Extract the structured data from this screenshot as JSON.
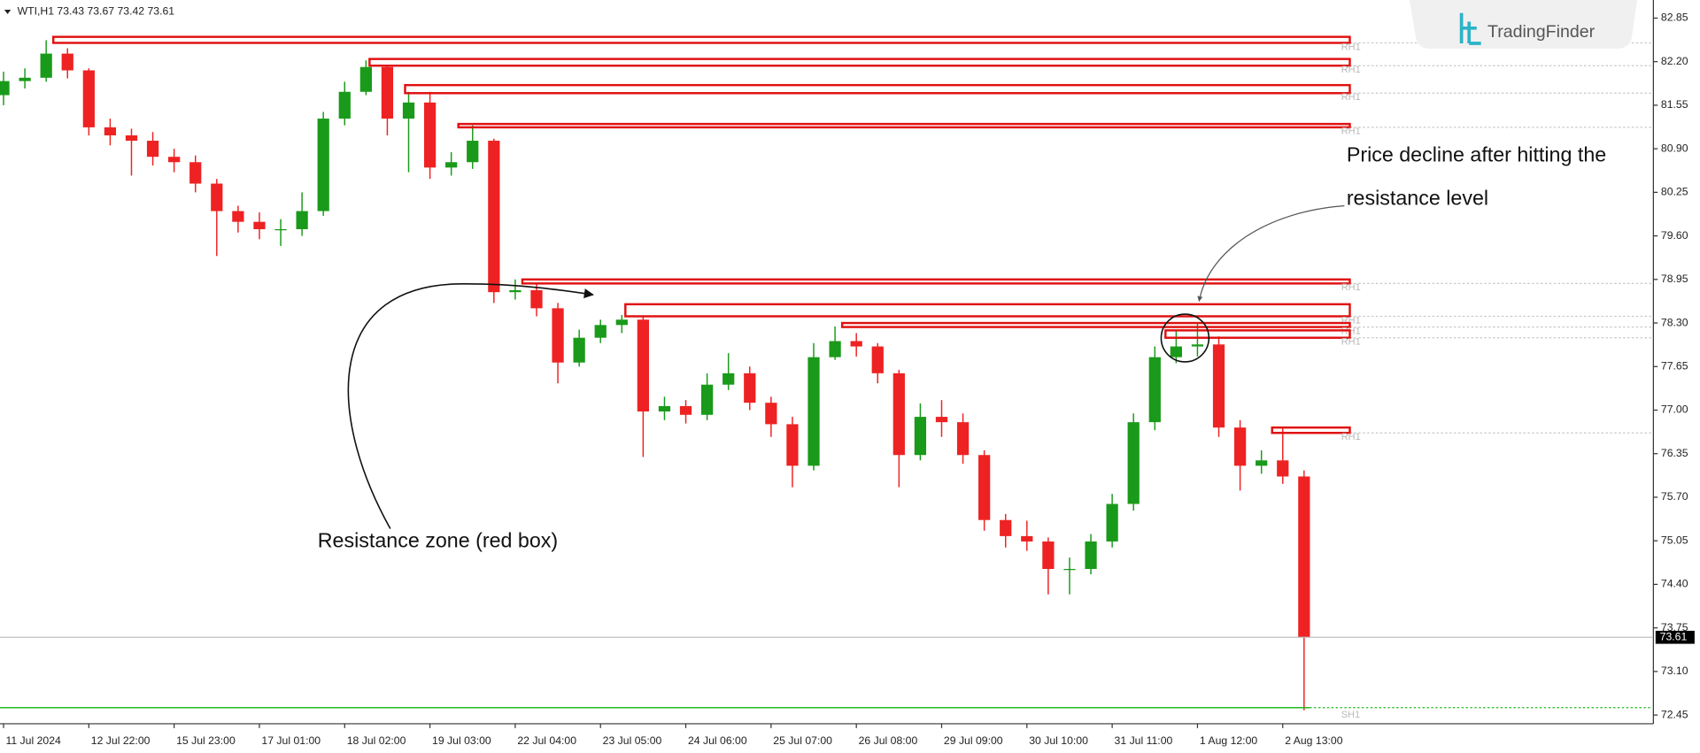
{
  "chart_data": {
    "type": "candlestick",
    "header": "WTI,H1  73.43 73.67 73.42 73.61",
    "logo": "TradingFinder",
    "annotations": [
      "Price decline after hitting the",
      "resistance level",
      "Resistance zone (red box)"
    ],
    "xlim": [
      -1,
      464
    ],
    "ylim": [
      72.32,
      83.12
    ],
    "xticks": [
      {
        "value": 0,
        "label": "11 Jul 2024"
      },
      {
        "value": 24,
        "label": "12 Jul 22:00"
      },
      {
        "value": 48,
        "label": "15 Jul 23:00"
      },
      {
        "value": 72,
        "label": "17 Jul 01:00"
      },
      {
        "value": 96,
        "label": "18 Jul 02:00"
      },
      {
        "value": 120,
        "label": "19 Jul 03:00"
      },
      {
        "value": 144,
        "label": "22 Jul 04:00"
      },
      {
        "value": 168,
        "label": "23 Jul 05:00"
      },
      {
        "value": 192,
        "label": "24 Jul 06:00"
      },
      {
        "value": 216,
        "label": "25 Jul 07:00"
      },
      {
        "value": 240,
        "label": "26 Jul 08:00"
      },
      {
        "value": 264,
        "label": "29 Jul 09:00"
      },
      {
        "value": 288,
        "label": "30 Jul 10:00"
      },
      {
        "value": 312,
        "label": "31 Jul 11:00"
      },
      {
        "value": 336,
        "label": "1 Aug 12:00"
      },
      {
        "value": 360,
        "label": "2 Aug 13:00"
      }
    ],
    "yticks": [
      82.85,
      {
        "value": 82.2,
        "label": "82.20"
      },
      81.55,
      {
        "value": 80.9,
        "label": "80.90"
      },
      80.25,
      {
        "value": 79.6,
        "label": "79.60"
      },
      78.95,
      {
        "value": 78.3,
        "label": "78.30"
      },
      77.65,
      {
        "value": 77,
        "label": "77.00"
      },
      76.35,
      {
        "value": 75.7,
        "label": "75.70"
      },
      75.05,
      {
        "value": 74.4,
        "label": "74.40"
      },
      73.75,
      {
        "value": 73.1,
        "label": "73.10"
      },
      72.45
    ],
    "x": [
      0,
      6,
      12,
      18,
      24,
      30,
      36,
      42,
      48,
      54,
      60,
      66,
      72,
      78,
      84,
      90,
      96,
      102,
      108,
      114,
      120,
      126,
      132,
      138,
      144,
      150,
      156,
      162,
      168,
      174,
      180,
      186,
      192,
      198,
      204,
      210,
      216,
      222,
      228,
      234,
      240,
      246,
      252,
      258,
      264,
      270,
      276,
      282,
      288,
      294,
      300,
      306,
      312,
      318,
      324,
      330,
      336,
      342,
      348,
      354,
      360,
      366
    ],
    "open": [
      81.7,
      81.91,
      81.96,
      82.32,
      82.07,
      81.22,
      81.1,
      81.02,
      80.78,
      80.7,
      80.38,
      79.97,
      79.81,
      79.7,
      79.7,
      79.97,
      81.35,
      81.75,
      82.12,
      81.35,
      81.59,
      80.62,
      80.7,
      81.02,
      78.76,
      78.79,
      78.52,
      77.71,
      78.08,
      78.27,
      78.35,
      76.98,
      77.06,
      76.93,
      77.38,
      77.55,
      77.11,
      76.79,
      76.17,
      77.79,
      78.03,
      77.95,
      77.55,
      76.33,
      76.9,
      76.82,
      76.33,
      75.36,
      75.12,
      75.04,
      74.63,
      74.63,
      75.04,
      75.6,
      76.82,
      77.79,
      77.95,
      77.98,
      76.74,
      76.17,
      76.25,
      76.01
    ],
    "high": [
      82.05,
      82.1,
      82.52,
      82.4,
      82.1,
      81.35,
      81.2,
      81.15,
      80.9,
      80.8,
      80.45,
      80.05,
      79.95,
      79.85,
      80.25,
      81.45,
      81.9,
      82.22,
      82.15,
      81.75,
      81.75,
      80.85,
      81.25,
      81.05,
      78.95,
      78.9,
      78.6,
      78.2,
      78.35,
      78.42,
      78.4,
      77.2,
      77.15,
      77.55,
      77.85,
      77.65,
      77.2,
      76.9,
      78.0,
      78.25,
      78.15,
      78.0,
      77.6,
      77.1,
      77.15,
      76.95,
      76.4,
      75.45,
      75.35,
      75.1,
      74.8,
      75.15,
      75.75,
      76.95,
      77.95,
      78.2,
      78.3,
      78.1,
      76.85,
      76.4,
      76.75,
      76.1
    ],
    "low": [
      81.55,
      81.8,
      81.9,
      81.95,
      81.1,
      80.95,
      80.5,
      80.65,
      80.55,
      80.25,
      79.3,
      79.65,
      79.55,
      79.45,
      79.6,
      79.9,
      81.25,
      81.7,
      81.1,
      80.55,
      80.45,
      80.5,
      80.6,
      78.6,
      78.65,
      78.4,
      77.4,
      77.65,
      78.0,
      78.15,
      76.3,
      76.85,
      76.8,
      76.85,
      77.3,
      77.0,
      76.6,
      75.85,
      76.1,
      77.75,
      77.8,
      77.4,
      75.85,
      76.25,
      76.6,
      76.2,
      75.2,
      74.95,
      74.9,
      74.25,
      74.25,
      74.55,
      74.95,
      75.5,
      76.7,
      77.7,
      77.8,
      76.6,
      75.8,
      76.05,
      75.9,
      72.52
    ],
    "close": [
      81.91,
      81.96,
      82.32,
      82.07,
      81.22,
      81.1,
      81.02,
      80.78,
      80.7,
      80.38,
      79.97,
      79.81,
      79.7,
      79.7,
      79.97,
      81.35,
      81.75,
      82.12,
      81.35,
      81.59,
      80.62,
      80.7,
      81.02,
      78.76,
      78.79,
      78.52,
      77.71,
      78.08,
      78.27,
      78.35,
      76.98,
      77.06,
      76.93,
      77.38,
      77.55,
      77.11,
      76.79,
      76.17,
      77.79,
      78.03,
      77.95,
      77.55,
      76.33,
      76.9,
      76.82,
      76.33,
      75.36,
      75.12,
      75.04,
      74.63,
      74.63,
      75.04,
      75.6,
      76.82,
      77.79,
      77.95,
      77.98,
      76.74,
      76.17,
      76.25,
      76.01,
      73.61
    ],
    "bull_color": "#1a9a1a",
    "bear_color": "#ee2222",
    "resistance_color": "#e01010",
    "support_color": "#22bb22",
    "resistance_levels": [
      {
        "label": "RH1",
        "low": 82.48,
        "high": 82.57,
        "start": 14
      },
      {
        "label": "RH1",
        "low": 82.14,
        "high": 82.24,
        "start": 103
      },
      {
        "label": "RH1",
        "low": 81.73,
        "high": 81.85,
        "start": 113
      },
      {
        "label": "RH1",
        "low": 81.22,
        "high": 81.27,
        "start": 128
      },
      {
        "label": "RH1",
        "low": 78.89,
        "high": 78.95,
        "start": 146
      },
      {
        "label": "RH1",
        "low": 78.4,
        "high": 78.58,
        "start": 175
      },
      {
        "label": "RH1",
        "low": 78.24,
        "high": 78.3,
        "start": 236
      },
      {
        "label": "RH1",
        "low": 78.08,
        "high": 78.19,
        "start": 327
      },
      {
        "label": "RH1",
        "low": 76.66,
        "high": 76.74,
        "start": 357
      }
    ],
    "support_levels": [
      {
        "label": "SH1",
        "value": 72.56
      }
    ],
    "last_price": 73.61
  }
}
